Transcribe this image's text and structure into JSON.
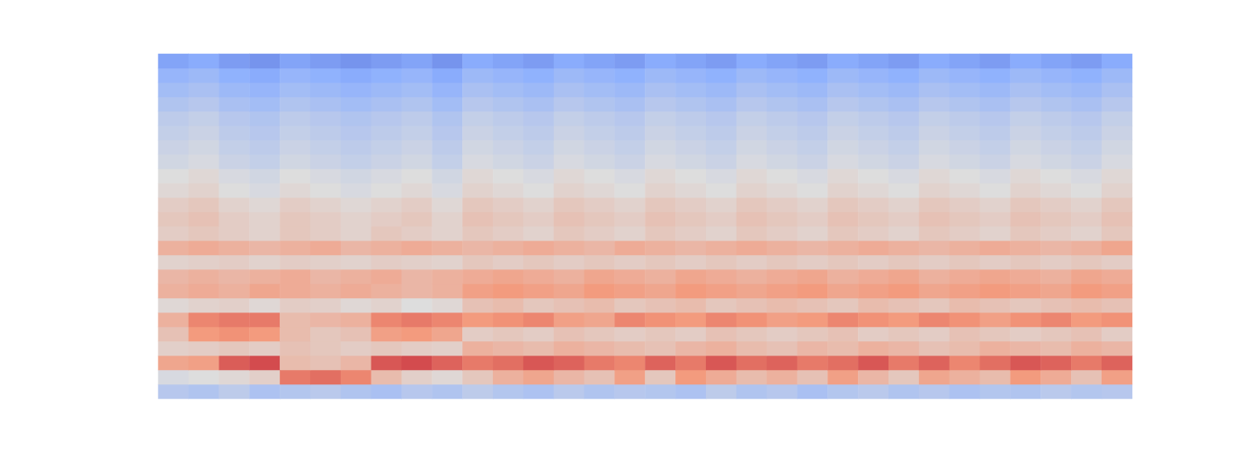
{
  "chart_data": {
    "type": "heatmap",
    "tick_labels": false,
    "zlim": [
      0,
      100
    ],
    "cells": [
      [
        38,
        36,
        40,
        35,
        37,
        39,
        36,
        34,
        38,
        36,
        40,
        37,
        35,
        39,
        36,
        38,
        37,
        35,
        40,
        36,
        38,
        34,
        37,
        39,
        36,
        38,
        35,
        37,
        36,
        39,
        37,
        38
      ],
      [
        48,
        50,
        52,
        55,
        80,
        82,
        78,
        62,
        55,
        52,
        58,
        66,
        70,
        64,
        60,
        72,
        58,
        74,
        68,
        62,
        66,
        60,
        72,
        64,
        58,
        70,
        66,
        62,
        74,
        68,
        60,
        72
      ],
      [
        70,
        72,
        85,
        88,
        62,
        60,
        64,
        86,
        88,
        84,
        80,
        82,
        86,
        84,
        80,
        78,
        84,
        80,
        86,
        82,
        84,
        80,
        82,
        86,
        80,
        84,
        78,
        82,
        86,
        84,
        80,
        84
      ],
      [
        55,
        56,
        58,
        56,
        60,
        58,
        56,
        58,
        56,
        55,
        66,
        64,
        62,
        66,
        64,
        62,
        60,
        64,
        66,
        62,
        60,
        64,
        62,
        66,
        64,
        60,
        62,
        66,
        64,
        62,
        66,
        64
      ],
      [
        60,
        74,
        76,
        74,
        62,
        58,
        60,
        72,
        74,
        70,
        56,
        58,
        56,
        60,
        58,
        56,
        58,
        56,
        60,
        58,
        56,
        58,
        60,
        56,
        58,
        56,
        60,
        58,
        56,
        58,
        60,
        56
      ],
      [
        66,
        78,
        80,
        80,
        62,
        64,
        66,
        78,
        80,
        78,
        74,
        76,
        78,
        72,
        70,
        78,
        76,
        74,
        78,
        76,
        72,
        74,
        78,
        76,
        74,
        78,
        76,
        72,
        76,
        78,
        74,
        76
      ],
      [
        52,
        54,
        55,
        52,
        56,
        55,
        52,
        54,
        50,
        52,
        60,
        62,
        58,
        60,
        62,
        58,
        60,
        62,
        58,
        60,
        62,
        60,
        58,
        62,
        60,
        58,
        62,
        60,
        58,
        60,
        62,
        60
      ],
      [
        66,
        68,
        66,
        70,
        68,
        66,
        68,
        66,
        64,
        66,
        72,
        74,
        72,
        70,
        74,
        72,
        70,
        74,
        72,
        70,
        72,
        74,
        70,
        72,
        74,
        70,
        72,
        74,
        72,
        70,
        74,
        72
      ],
      [
        64,
        66,
        64,
        66,
        68,
        64,
        66,
        68,
        64,
        66,
        68,
        70,
        68,
        66,
        70,
        68,
        66,
        70,
        68,
        66,
        68,
        70,
        66,
        68,
        70,
        66,
        68,
        70,
        68,
        66,
        70,
        68
      ],
      [
        54,
        55,
        56,
        54,
        56,
        55,
        54,
        56,
        55,
        54,
        58,
        56,
        58,
        56,
        58,
        56,
        58,
        56,
        58,
        56,
        58,
        56,
        58,
        56,
        58,
        56,
        58,
        56,
        58,
        56,
        58,
        56
      ],
      [
        66,
        68,
        66,
        64,
        66,
        68,
        64,
        66,
        68,
        66,
        64,
        66,
        68,
        66,
        64,
        68,
        66,
        64,
        66,
        68,
        66,
        64,
        66,
        68,
        66,
        64,
        66,
        68,
        66,
        64,
        66,
        70
      ],
      [
        56,
        58,
        56,
        54,
        58,
        56,
        54,
        58,
        56,
        54,
        58,
        56,
        54,
        58,
        56,
        54,
        58,
        56,
        54,
        58,
        56,
        54,
        58,
        56,
        54,
        58,
        56,
        54,
        58,
        56,
        54,
        58
      ],
      [
        58,
        60,
        56,
        54,
        58,
        56,
        54,
        56,
        58,
        54,
        60,
        58,
        56,
        60,
        58,
        56,
        60,
        58,
        56,
        60,
        58,
        56,
        60,
        58,
        56,
        60,
        58,
        56,
        60,
        58,
        56,
        60
      ],
      [
        56,
        58,
        54,
        52,
        56,
        54,
        52,
        54,
        56,
        52,
        58,
        56,
        54,
        58,
        56,
        54,
        58,
        56,
        54,
        58,
        56,
        54,
        58,
        56,
        54,
        58,
        56,
        54,
        58,
        56,
        54,
        58
      ],
      [
        52,
        54,
        50,
        48,
        52,
        50,
        48,
        50,
        52,
        48,
        54,
        52,
        50,
        54,
        52,
        50,
        54,
        52,
        50,
        54,
        52,
        50,
        54,
        52,
        50,
        54,
        52,
        50,
        54,
        52,
        50,
        54
      ],
      [
        50,
        52,
        48,
        46,
        50,
        48,
        46,
        48,
        50,
        46,
        52,
        50,
        48,
        52,
        50,
        48,
        52,
        50,
        48,
        52,
        50,
        48,
        52,
        50,
        48,
        52,
        50,
        48,
        52,
        50,
        48,
        52
      ],
      [
        46,
        48,
        44,
        42,
        46,
        44,
        42,
        44,
        46,
        42,
        48,
        46,
        44,
        48,
        46,
        44,
        48,
        46,
        44,
        48,
        46,
        44,
        48,
        46,
        44,
        48,
        46,
        44,
        48,
        46,
        44,
        48
      ],
      [
        44,
        46,
        42,
        40,
        44,
        42,
        40,
        42,
        44,
        40,
        46,
        44,
        42,
        46,
        44,
        42,
        46,
        44,
        42,
        46,
        44,
        42,
        46,
        44,
        42,
        46,
        44,
        42,
        46,
        44,
        42,
        46
      ],
      [
        42,
        44,
        40,
        38,
        42,
        40,
        38,
        40,
        42,
        38,
        44,
        42,
        40,
        44,
        42,
        40,
        44,
        42,
        40,
        44,
        42,
        40,
        44,
        42,
        40,
        44,
        42,
        40,
        44,
        42,
        40,
        44
      ],
      [
        40,
        42,
        38,
        36,
        40,
        38,
        36,
        38,
        40,
        36,
        42,
        40,
        38,
        42,
        40,
        38,
        42,
        40,
        38,
        42,
        40,
        38,
        42,
        40,
        38,
        42,
        40,
        38,
        42,
        40,
        38,
        42
      ],
      [
        36,
        38,
        34,
        32,
        36,
        34,
        32,
        34,
        36,
        32,
        38,
        36,
        34,
        38,
        36,
        34,
        38,
        36,
        34,
        38,
        36,
        34,
        38,
        36,
        34,
        38,
        36,
        34,
        38,
        36,
        34,
        38
      ],
      [
        32,
        34,
        30,
        28,
        32,
        30,
        28,
        30,
        32,
        28,
        34,
        32,
        30,
        34,
        32,
        30,
        34,
        32,
        30,
        34,
        32,
        30,
        34,
        32,
        30,
        34,
        32,
        30,
        34,
        32,
        30,
        34
      ],
      [
        28,
        30,
        26,
        24,
        28,
        26,
        24,
        26,
        28,
        24,
        30,
        28,
        26,
        30,
        28,
        26,
        30,
        28,
        26,
        30,
        28,
        26,
        30,
        28,
        26,
        30,
        28,
        26,
        30,
        28,
        26,
        30
      ],
      [
        22,
        24,
        20,
        18,
        22,
        20,
        18,
        20,
        22,
        18,
        24,
        22,
        20,
        24,
        22,
        20,
        24,
        22,
        20,
        24,
        22,
        20,
        24,
        22,
        20,
        24,
        22,
        20,
        24,
        22,
        20,
        24
      ]
    ]
  }
}
